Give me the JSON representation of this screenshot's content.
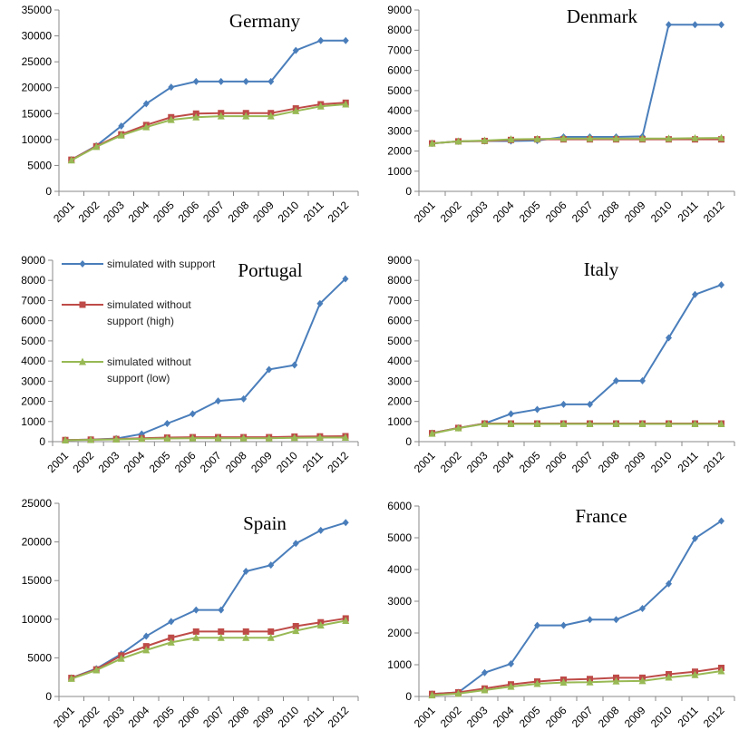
{
  "chart_data": [
    {
      "type": "line",
      "title": "Germany",
      "categories": [
        "2001",
        "2002",
        "2003",
        "2004",
        "2005",
        "2006",
        "2007",
        "2008",
        "2009",
        "2010",
        "2011",
        "2012"
      ],
      "ylim": [
        0,
        35000
      ],
      "yticks": [
        0,
        5000,
        10000,
        15000,
        20000,
        25000,
        30000,
        35000
      ],
      "series": [
        {
          "color": "#4a7ebb",
          "marker": "diamond",
          "values": [
            6100,
            8800,
            12600,
            16900,
            20100,
            21200,
            21200,
            21200,
            21200,
            27200,
            29100,
            29100
          ]
        },
        {
          "color": "#be4b48",
          "marker": "square",
          "values": [
            6100,
            8700,
            11000,
            12800,
            14300,
            15000,
            15100,
            15100,
            15100,
            16000,
            16800,
            17100
          ]
        },
        {
          "color": "#98b954",
          "marker": "triangle",
          "values": [
            6000,
            8600,
            10800,
            12400,
            13800,
            14300,
            14500,
            14500,
            14500,
            15500,
            16400,
            16800
          ]
        }
      ]
    },
    {
      "type": "line",
      "title": "Denmark",
      "categories": [
        "2001",
        "2002",
        "2003",
        "2004",
        "2005",
        "2006",
        "2007",
        "2008",
        "2009",
        "2010",
        "2011",
        "2012"
      ],
      "ylim": [
        0,
        9000
      ],
      "yticks": [
        0,
        1000,
        2000,
        3000,
        4000,
        5000,
        6000,
        7000,
        8000,
        9000
      ],
      "series": [
        {
          "color": "#4a7ebb",
          "marker": "diamond",
          "values": [
            2380,
            2480,
            2500,
            2500,
            2520,
            2700,
            2700,
            2700,
            2730,
            8270,
            8270,
            8270
          ]
        },
        {
          "color": "#be4b48",
          "marker": "square",
          "values": [
            2380,
            2480,
            2500,
            2550,
            2580,
            2580,
            2580,
            2580,
            2580,
            2580,
            2580,
            2580
          ]
        },
        {
          "color": "#98b954",
          "marker": "triangle",
          "values": [
            2380,
            2480,
            2520,
            2580,
            2600,
            2620,
            2620,
            2620,
            2620,
            2620,
            2640,
            2650
          ]
        }
      ]
    },
    {
      "type": "line",
      "title": "Portugal",
      "legend": "upper-left",
      "categories": [
        "2001",
        "2002",
        "2003",
        "2004",
        "2005",
        "2006",
        "2007",
        "2008",
        "2009",
        "2010",
        "2011",
        "2012"
      ],
      "ylim": [
        0,
        9000
      ],
      "yticks": [
        0,
        1000,
        2000,
        3000,
        4000,
        5000,
        6000,
        7000,
        8000,
        9000
      ],
      "series": [
        {
          "name": "simulated with support",
          "color": "#4a7ebb",
          "marker": "diamond",
          "values": [
            80,
            100,
            150,
            380,
            900,
            1380,
            2020,
            2120,
            3580,
            3800,
            6850,
            8080
          ]
        },
        {
          "name": "simulated without support (high)",
          "color": "#be4b48",
          "marker": "square",
          "values": [
            80,
            100,
            130,
            170,
            200,
            220,
            220,
            220,
            220,
            250,
            260,
            270
          ]
        },
        {
          "name": "simulated without support (low)",
          "color": "#98b954",
          "marker": "triangle",
          "values": [
            70,
            90,
            110,
            140,
            160,
            170,
            170,
            170,
            170,
            190,
            200,
            200
          ]
        }
      ]
    },
    {
      "type": "line",
      "title": "Italy",
      "categories": [
        "2001",
        "2002",
        "2003",
        "2004",
        "2005",
        "2006",
        "2007",
        "2008",
        "2009",
        "2010",
        "2011",
        "2012"
      ],
      "ylim": [
        0,
        9000
      ],
      "yticks": [
        0,
        1000,
        2000,
        3000,
        4000,
        5000,
        6000,
        7000,
        8000,
        9000
      ],
      "series": [
        {
          "color": "#4a7ebb",
          "marker": "diamond",
          "values": [
            420,
            680,
            900,
            1380,
            1600,
            1850,
            1850,
            3020,
            3020,
            5150,
            7300,
            7780
          ]
        },
        {
          "color": "#be4b48",
          "marker": "square",
          "values": [
            420,
            680,
            900,
            900,
            900,
            900,
            900,
            900,
            900,
            900,
            900,
            900
          ]
        },
        {
          "color": "#98b954",
          "marker": "triangle",
          "values": [
            400,
            670,
            880,
            880,
            880,
            880,
            880,
            880,
            880,
            880,
            880,
            880
          ]
        }
      ]
    },
    {
      "type": "line",
      "title": "Spain",
      "categories": [
        "2001",
        "2002",
        "2003",
        "2004",
        "2005",
        "2006",
        "2007",
        "2008",
        "2009",
        "2010",
        "2011",
        "2012"
      ],
      "ylim": [
        0,
        25000
      ],
      "yticks": [
        0,
        5000,
        10000,
        15000,
        20000,
        25000
      ],
      "series": [
        {
          "color": "#4a7ebb",
          "marker": "diamond",
          "values": [
            2400,
            3600,
            5500,
            7800,
            9700,
            11200,
            11200,
            16200,
            17000,
            19800,
            21500,
            22500
          ]
        },
        {
          "color": "#be4b48",
          "marker": "square",
          "values": [
            2400,
            3500,
            5300,
            6500,
            7600,
            8400,
            8400,
            8400,
            8400,
            9100,
            9600,
            10100
          ]
        },
        {
          "color": "#98b954",
          "marker": "triangle",
          "values": [
            2300,
            3400,
            4900,
            6000,
            7000,
            7600,
            7600,
            7600,
            7600,
            8500,
            9200,
            9800
          ]
        }
      ]
    },
    {
      "type": "line",
      "title": "France",
      "categories": [
        "2001",
        "2002",
        "2003",
        "2004",
        "2005",
        "2006",
        "2007",
        "2008",
        "2009",
        "2010",
        "2011",
        "2012"
      ],
      "ylim": [
        0,
        6000
      ],
      "yticks": [
        0,
        1000,
        2000,
        3000,
        4000,
        5000,
        6000
      ],
      "series": [
        {
          "color": "#4a7ebb",
          "marker": "diamond",
          "values": [
            80,
            130,
            750,
            1030,
            2240,
            2240,
            2420,
            2420,
            2770,
            3550,
            4980,
            5530
          ]
        },
        {
          "color": "#be4b48",
          "marker": "square",
          "values": [
            80,
            130,
            250,
            380,
            470,
            530,
            550,
            590,
            590,
            700,
            780,
            900
          ]
        },
        {
          "color": "#98b954",
          "marker": "triangle",
          "values": [
            40,
            90,
            200,
            310,
            400,
            440,
            450,
            480,
            490,
            600,
            680,
            800
          ]
        }
      ]
    }
  ]
}
